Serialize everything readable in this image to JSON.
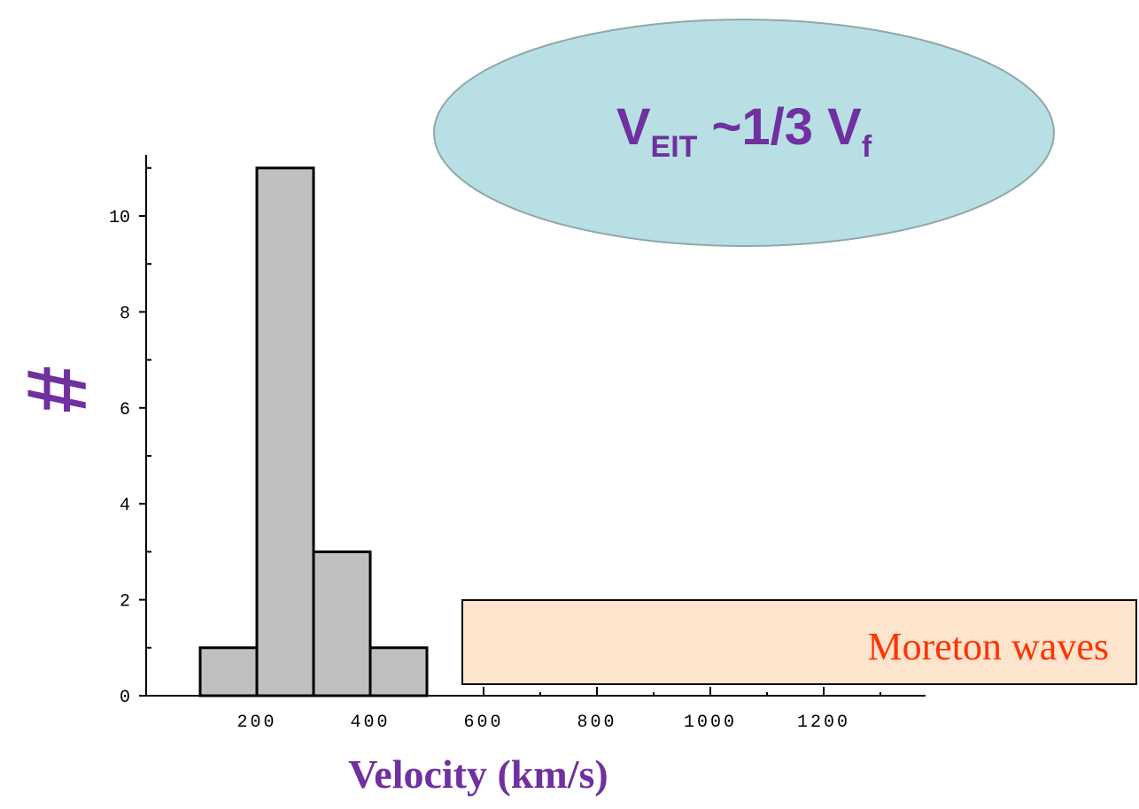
{
  "chart_data": {
    "type": "bar",
    "bin_edges": [
      100,
      200,
      300,
      400,
      500
    ],
    "values": [
      1,
      11,
      3,
      1
    ],
    "xticks": [
      200,
      400,
      600,
      800,
      1000,
      1200
    ],
    "yticks": [
      0,
      2,
      4,
      6,
      8,
      10
    ],
    "xlabel": "Velocity (km/s)",
    "ylabel": "#",
    "xlim": [
      0,
      1350
    ],
    "ylim": [
      0,
      11.5
    ],
    "bar_color": "#c0c0c0"
  },
  "annotations": {
    "ellipse_main": "V",
    "ellipse_sub": "EIT",
    "ellipse_rest": " ~1/3 V",
    "ellipse_sub2": "f",
    "ellipse_color": "#b8dfe3",
    "box_text": "Moreton waves",
    "box_color": "#fde4cd"
  }
}
